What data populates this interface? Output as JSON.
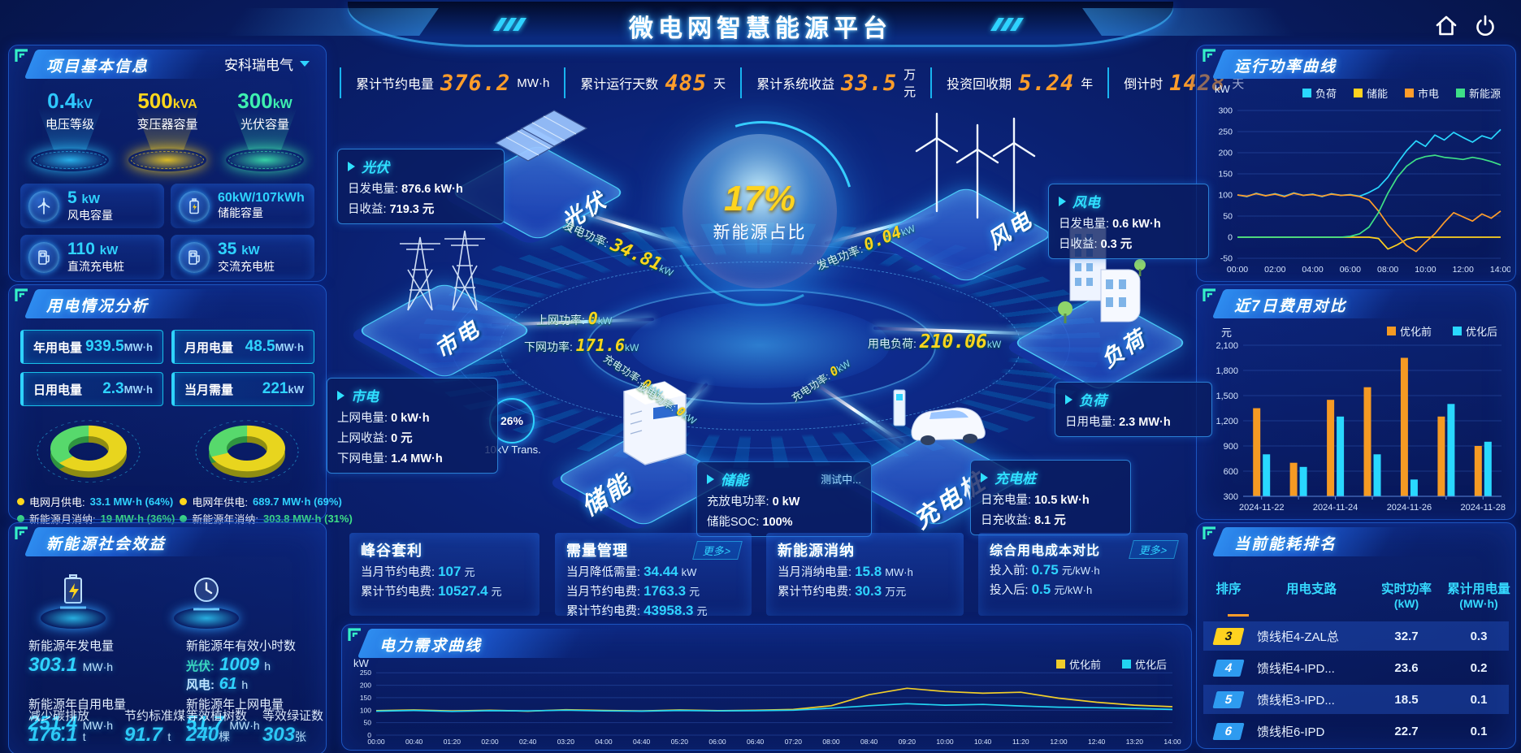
{
  "title": "微电网智慧能源平台",
  "topbar": {
    "stats": [
      {
        "label": "累计节约电量",
        "value": "376.2",
        "unit": "MW·h"
      },
      {
        "label": "累计运行天数",
        "value": "485",
        "unit": "天"
      },
      {
        "label": "累计系统收益",
        "value": "33.5",
        "unit": "万元"
      },
      {
        "label": "投资回收期",
        "value": "5.24",
        "unit": "年"
      },
      {
        "label": "倒计时",
        "value": "1428",
        "unit": "天"
      }
    ]
  },
  "project": {
    "header": "项目基本信息",
    "company": "安科瑞电气",
    "halos": [
      {
        "value": "0.4",
        "unit": "kV",
        "label": "电压等级",
        "color": "#2ec8ff"
      },
      {
        "value": "500",
        "unit": "kVA",
        "label": "变压器容量",
        "color": "#ffd71c"
      },
      {
        "value": "300",
        "unit": "kW",
        "label": "光伏容量",
        "color": "#3ef0b0"
      }
    ],
    "cards": [
      {
        "value": "5",
        "unit": "kW",
        "label": "风电容量"
      },
      {
        "value": "60kW/107kWh",
        "unit": "",
        "label": "储能容量"
      },
      {
        "value": "110",
        "unit": "kW",
        "label": "直流充电桩"
      },
      {
        "value": "35",
        "unit": "kW",
        "label": "交流充电桩"
      }
    ]
  },
  "usage": {
    "header": "用电情况分析",
    "stats": [
      {
        "label": "年用电量",
        "value": "939.5",
        "unit": "MW·h"
      },
      {
        "label": "月用电量",
        "value": "48.5",
        "unit": "MW·h"
      },
      {
        "label": "日用电量",
        "value": "2.3",
        "unit": "MW·h"
      },
      {
        "label": "当月需量",
        "value": "221",
        "unit": "kW"
      }
    ],
    "donuts": [
      {
        "grid_pct": 64,
        "legend": [
          {
            "label": "电网月供电:",
            "value": "33.1 MW·h (64%)",
            "color": "#ffd71c",
            "value_color": "#2fd3ff"
          },
          {
            "label": "新能源月消纳:",
            "value": "19 MW·h (36%)",
            "color": "#3ee087",
            "value_color": "#3ee087"
          }
        ]
      },
      {
        "grid_pct": 69,
        "legend": [
          {
            "label": "电网年供电:",
            "value": "689.7 MW·h (69%)",
            "color": "#ffd71c",
            "value_color": "#2fd3ff"
          },
          {
            "label": "新能源年消纳:",
            "value": "303.8 MW·h (31%)",
            "color": "#3ee087",
            "value_color": "#3ee087"
          }
        ]
      }
    ]
  },
  "benefits": {
    "header": "新能源社会效益",
    "gen": {
      "label": "新能源年发电量",
      "value": "303.1",
      "unit": "MW·h"
    },
    "hours": {
      "label": "新能源年有效小时数",
      "pv_k": "光伏:",
      "pv_v": "1009",
      "pv_u": "h",
      "wind_k": "风电:",
      "wind_v": "61",
      "wind_u": "h"
    },
    "self_use": {
      "label": "新能源年自用电量",
      "value": "251.4",
      "unit": "MW·h"
    },
    "to_grid": {
      "label": "新能源年上网电量",
      "value": "51.7",
      "unit": "MW·h"
    },
    "co2": {
      "label": "减少碳排放",
      "value": "176.1",
      "unit": "t"
    },
    "coal": {
      "label": "节约标准煤",
      "value": "91.7",
      "unit": "t"
    },
    "trees": {
      "label": "等效植树数",
      "value": "240",
      "unit": "棵"
    },
    "certs": {
      "label": "等效绿证数",
      "value": "303",
      "unit": "张"
    }
  },
  "center": {
    "core": {
      "value": "17%",
      "label": "新能源占比"
    },
    "transformer": {
      "value": "26%",
      "label": "10kV Trans."
    },
    "nodes": {
      "pv": "光伏",
      "grid": "市电",
      "storage": "储能",
      "wind": "风电",
      "load": "负荷",
      "charger": "充电桩"
    },
    "boxes": {
      "pv": {
        "title": "光伏",
        "l0k": "日发电量:",
        "l0v": "876.6 kW·h",
        "l1k": "日收益:",
        "l1v": "719.3 元"
      },
      "wind": {
        "title": "风电",
        "l0k": "日发电量:",
        "l0v": "0.6 kW·h",
        "l1k": "日收益:",
        "l1v": "0.3 元"
      },
      "grid": {
        "title": "市电",
        "l0k": "上网电量:",
        "l0v": "0 kW·h",
        "l1k": "上网收益:",
        "l1v": "0 元",
        "l2k": "下网电量:",
        "l2v": "1.4 MW·h"
      },
      "load": {
        "title": "负荷",
        "l0k": "日用电量:",
        "l0v": "2.3 MW·h"
      },
      "storage": {
        "title": "储能",
        "badge": "测试中...",
        "l0k": "充放电功率:",
        "l0v": "0 kW",
        "l1k": "储能SOC:",
        "l1v": "100%"
      },
      "charger": {
        "title": "充电桩",
        "l0k": "日充电量:",
        "l0v": "10.5 kW·h",
        "l1k": "日充收益:",
        "l1v": "8.1 元"
      }
    },
    "flows": [
      {
        "label": "发电功率:",
        "value": "34.81",
        "unit": "kW"
      },
      {
        "label": "上网功率:",
        "value": "0",
        "unit": "kW"
      },
      {
        "label": "下网功率:",
        "value": "171.6",
        "unit": "kW"
      },
      {
        "label": "发电功率:",
        "value": "0.04",
        "unit": "kW"
      },
      {
        "label": "用电负荷:",
        "value": "210.06",
        "unit": "kW"
      },
      {
        "label": "充电功率:",
        "value": "0",
        "unit": "kW"
      },
      {
        "label": "放电功率:",
        "value": "0",
        "unit": "kW"
      },
      {
        "label": "充电功率:",
        "value": "0",
        "unit": "kW"
      }
    ],
    "cards": [
      {
        "title": "峰谷套利",
        "more": "",
        "l0k": "当月节约电费:",
        "l0v": "107",
        "l0u": "元",
        "l1k": "累计节约电费:",
        "l1v": "10527.4",
        "l1u": "元"
      },
      {
        "title": "需量管理",
        "more": "更多>",
        "l0k": "当月降低需量:",
        "l0v": "34.44",
        "l0u": "kW",
        "l1k": "当月节约电费:",
        "l1v": "1763.3",
        "l1u": "元",
        "l2k": "累计节约电费:",
        "l2v": "43958.3",
        "l2u": "元"
      },
      {
        "title": "新能源消纳",
        "more": "",
        "l0k": "当月消纳电量:",
        "l0v": "15.8",
        "l0u": "MW·h",
        "l1k": "累计节约电费:",
        "l1v": "30.3",
        "l1u": "万元"
      },
      {
        "title": "综合用电成本对比",
        "more": "更多>",
        "l0k": "投入前:",
        "l0v": "0.75",
        "l0u": "元/kW·h",
        "l1k": "投入后:",
        "l1v": "0.5",
        "l1u": "元/kW·h"
      }
    ]
  },
  "charts": {
    "power": {
      "header": "运行功率曲线",
      "type": "line",
      "unit": "kW",
      "ylim": [
        -50,
        300
      ],
      "yticks": [
        -50,
        0,
        50,
        100,
        150,
        200,
        250,
        300
      ],
      "xticks": [
        "00:00",
        "02:00",
        "04:00",
        "06:00",
        "08:00",
        "10:00",
        "12:00",
        "14:00"
      ],
      "series": [
        {
          "name": "负荷",
          "color": "#29d8ff",
          "values": [
            100,
            96,
            104,
            98,
            103,
            97,
            105,
            99,
            102,
            96,
            103,
            99,
            101,
            97,
            106,
            118,
            142,
            175,
            205,
            228,
            215,
            242,
            230,
            248,
            236,
            225,
            240,
            233,
            255
          ]
        },
        {
          "name": "储能",
          "color": "#ffd21f",
          "values": [
            0,
            0,
            0,
            0,
            0,
            0,
            0,
            0,
            0,
            0,
            0,
            0,
            0,
            0,
            0,
            -3,
            -28,
            -18,
            -5,
            0,
            0,
            0,
            0,
            0,
            0,
            0,
            0,
            0,
            0
          ]
        },
        {
          "name": "市电",
          "color": "#ff9d2a",
          "values": [
            100,
            97,
            103,
            98,
            102,
            96,
            104,
            99,
            101,
            97,
            102,
            99,
            100,
            96,
            88,
            62,
            30,
            5,
            -20,
            -34,
            -12,
            8,
            35,
            58,
            48,
            38,
            55,
            45,
            62
          ]
        },
        {
          "name": "新能源",
          "color": "#3ee087",
          "values": [
            0,
            0,
            0,
            0,
            0,
            0,
            0,
            0,
            0,
            0,
            0,
            0,
            2,
            8,
            24,
            58,
            104,
            142,
            168,
            184,
            191,
            194,
            189,
            187,
            184,
            189,
            185,
            179,
            171
          ]
        }
      ]
    },
    "cost": {
      "header": "近7日费用对比",
      "type": "bar",
      "unit": "元",
      "ylim": [
        300,
        2100
      ],
      "yticks": [
        300,
        600,
        900,
        1200,
        1500,
        1800,
        2100
      ],
      "categories": [
        "2024-11-22",
        "2024-11-23",
        "2024-11-24",
        "2024-11-25",
        "2024-11-26",
        "2024-11-27",
        "2024-11-28"
      ],
      "xticks_show": [
        "2024-11-22",
        "2024-11-24",
        "2024-11-26",
        "2024-11-28"
      ],
      "series": [
        {
          "name": "优化前",
          "color": "#f59a23",
          "values": [
            1350,
            700,
            1450,
            1600,
            1950,
            1250,
            900
          ]
        },
        {
          "name": "优化后",
          "color": "#29d8ff",
          "values": [
            800,
            650,
            1250,
            800,
            500,
            1400,
            950
          ]
        }
      ]
    },
    "demand": {
      "header": "电力需求曲线",
      "type": "line",
      "unit": "kW",
      "ylim": [
        0,
        280
      ],
      "yticks": [
        0,
        50,
        100,
        150,
        200,
        250
      ],
      "xticks": [
        "00:00",
        "00:40",
        "01:20",
        "02:00",
        "02:40",
        "03:20",
        "04:00",
        "04:40",
        "05:20",
        "06:00",
        "06:40",
        "07:20",
        "08:00",
        "08:40",
        "09:20",
        "10:00",
        "10:40",
        "11:20",
        "12:00",
        "12:40",
        "13:20",
        "14:00"
      ],
      "series": [
        {
          "name": "优化前",
          "color": "#f0cd2a",
          "values": [
            98,
            101,
            97,
            100,
            96,
            102,
            99,
            97,
            101,
            98,
            100,
            103,
            118,
            162,
            188,
            175,
            168,
            172,
            148,
            132,
            120,
            114
          ]
        },
        {
          "name": "优化后",
          "color": "#22d4f2",
          "values": [
            96,
            99,
            95,
            98,
            97,
            100,
            97,
            96,
            99,
            97,
            98,
            100,
            108,
            118,
            126,
            120,
            123,
            117,
            112,
            110,
            107,
            103
          ]
        }
      ]
    }
  },
  "ranking": {
    "header": "当前能耗排名",
    "headers": [
      "排序",
      "用电支路",
      "实时功率",
      "累计用电量"
    ],
    "units": [
      "",
      "",
      "(kW)",
      "(MW·h)"
    ],
    "rows": [
      {
        "rank": "3",
        "badge": "#ffd21f",
        "badge_text": "#1a1a1a",
        "branch": "馈线柜4-ZAL总",
        "power": "32.7",
        "energy": "0.3"
      },
      {
        "rank": "4",
        "badge": "#2e9bf0",
        "badge_text": "#ffffff",
        "branch": "馈线柜4-IPD...",
        "power": "23.6",
        "energy": "0.2"
      },
      {
        "rank": "5",
        "badge": "#2e9bf0",
        "badge_text": "#ffffff",
        "branch": "馈线柜3-IPD...",
        "power": "18.5",
        "energy": "0.1"
      },
      {
        "rank": "6",
        "badge": "#2e9bf0",
        "badge_text": "#ffffff",
        "branch": "馈线柜6-IPD",
        "power": "22.7",
        "energy": "0.1"
      }
    ]
  }
}
